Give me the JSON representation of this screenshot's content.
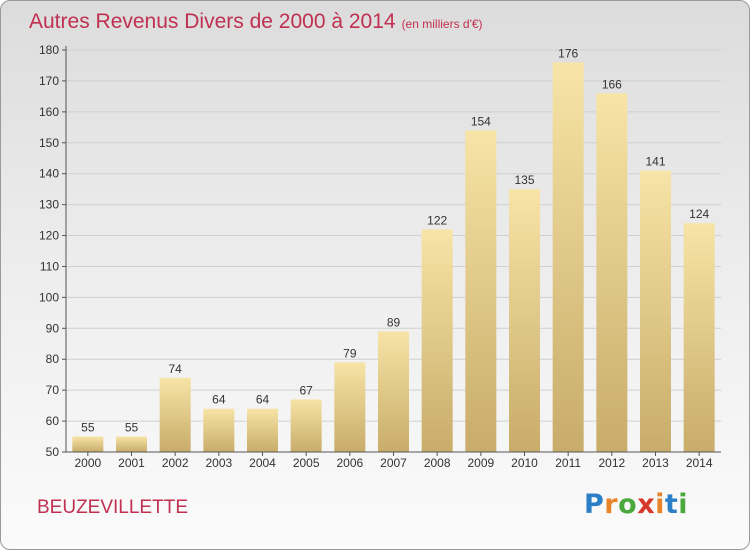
{
  "title": "Autres Revenus Divers de 2000 à 2014",
  "subtitle": "(en milliers d'€)",
  "commune": "BEUZEVILLETTE",
  "logo": {
    "text": "Proxiti",
    "colors": [
      "#2a7fc6",
      "#e8842a",
      "#4aa83c",
      "#d8382c",
      "#e8842a",
      "#2a7fc6",
      "#4aa83c"
    ]
  },
  "colors": {
    "bar_light": "#f7e4a6",
    "bar_dark": "#c8ac6a",
    "accent": "#c03050"
  },
  "chart_data": {
    "type": "bar",
    "title": "Autres Revenus Divers de 2000 à 2014",
    "subtitle": "(en milliers d'€)",
    "categories": [
      "2000",
      "2001",
      "2002",
      "2003",
      "2004",
      "2005",
      "2006",
      "2007",
      "2008",
      "2009",
      "2010",
      "2011",
      "2012",
      "2013",
      "2014"
    ],
    "values": [
      55,
      55,
      74,
      64,
      64,
      67,
      79,
      89,
      122,
      154,
      135,
      176,
      166,
      141,
      124
    ],
    "ylim": [
      50,
      180
    ],
    "yticks": [
      50,
      60,
      70,
      80,
      90,
      100,
      110,
      120,
      130,
      140,
      150,
      160,
      170,
      180
    ],
    "grid": true,
    "legend": "none"
  }
}
